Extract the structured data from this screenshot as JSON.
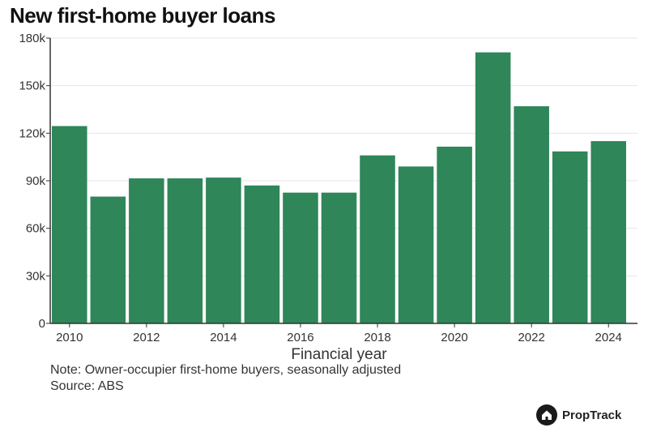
{
  "title": "New first-home buyer loans",
  "note": "Note: Owner-occupier first-home buyers, seasonally adjusted",
  "source": "Source: ABS",
  "brand": "PropTrack",
  "colors": {
    "bar": "#2e8659",
    "axis": "#333333",
    "grid": "#e6e6e6",
    "text": "#333333"
  },
  "chart_data": {
    "type": "bar",
    "title": "New first-home buyer loans",
    "xlabel": "Financial year",
    "ylabel": "",
    "categories": [
      2010,
      2011,
      2012,
      2013,
      2014,
      2015,
      2016,
      2017,
      2018,
      2019,
      2020,
      2021,
      2022,
      2023,
      2024
    ],
    "values": [
      124500,
      80000,
      91500,
      91500,
      92000,
      87000,
      82500,
      82500,
      106000,
      99000,
      111500,
      171000,
      137000,
      108500,
      115000
    ],
    "ylim": [
      0,
      180000
    ],
    "yticks": [
      0,
      30000,
      60000,
      90000,
      120000,
      150000,
      180000
    ],
    "ytick_labels": [
      "0",
      "30k",
      "60k",
      "90k",
      "120k",
      "150k",
      "180k"
    ],
    "xtick_labels": [
      "2010",
      "2012",
      "2014",
      "2016",
      "2018",
      "2020",
      "2022",
      "2024"
    ],
    "grid": true,
    "legend": "none"
  }
}
